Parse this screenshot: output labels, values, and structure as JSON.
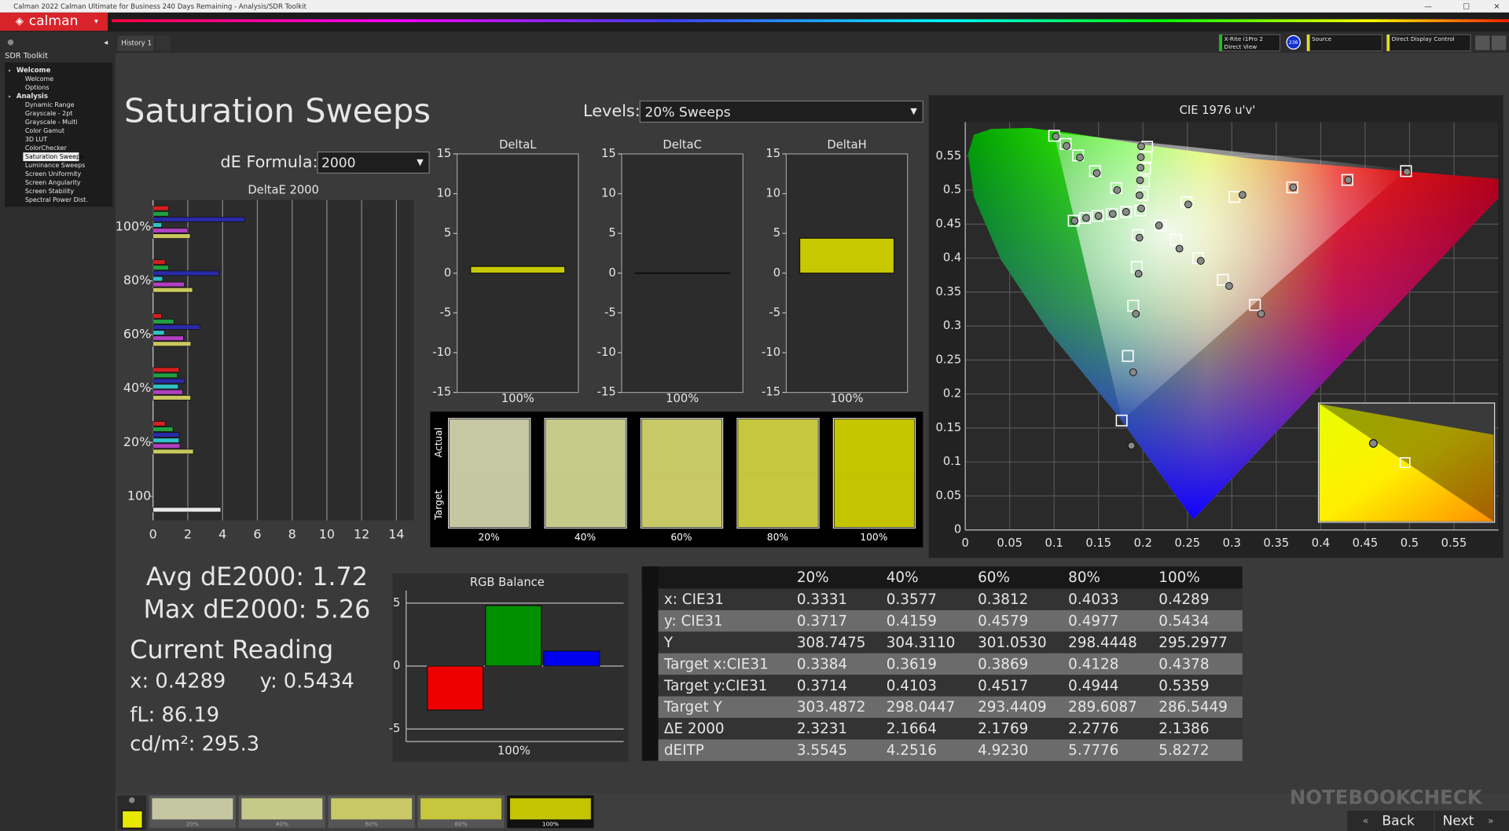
{
  "window": {
    "title": "Calman 2022 Calman Ultimate for Business 240 Days Remaining  - Analysis/SDR Toolkit",
    "logo": "calman",
    "history_tab": "History 1",
    "meter_name": "X-Rite i1Pro 2",
    "meter_mode": "Direct View",
    "meter_badge": "236",
    "source": "Source",
    "display_control": "Direct Display Control"
  },
  "sidebar": {
    "title": "SDR Toolkit",
    "groups": [
      {
        "label": "Welcome",
        "items": [
          "Welcome",
          "Options"
        ]
      },
      {
        "label": "Analysis",
        "items": [
          "Dynamic Range",
          "Grayscale - 2pt",
          "Grayscale - Multi",
          "Color Gamut",
          "3D LUT",
          "ColorChecker",
          "Saturation Sweeps",
          "Luminance Sweeps",
          "Screen Uniformity",
          "Screen Angularity",
          "Screen Stability",
          "Spectral Power Dist."
        ]
      }
    ],
    "selected_group": 1,
    "selected_item": 6
  },
  "page": {
    "heading": "Saturation Sweeps",
    "levels_label": "Levels:",
    "levels_value": "20% Sweeps",
    "formula_label": "dE Formula:",
    "formula_value": "2000"
  },
  "deltae_chart": {
    "type": "bar",
    "orientation": "horizontal",
    "title": "DeltaE 2000",
    "categories": [
      "100%",
      "80%",
      "60%",
      "40%",
      "20%",
      "100"
    ],
    "series": [
      {
        "color": "#d42020",
        "values": [
          0.9,
          0.7,
          0.5,
          1.5,
          0.7,
          null
        ]
      },
      {
        "color": "#20a040",
        "values": [
          0.9,
          0.9,
          1.2,
          1.4,
          1.15,
          null
        ]
      },
      {
        "color": "#2a2aa8",
        "values": [
          5.26,
          3.8,
          2.7,
          1.8,
          1.5,
          null
        ]
      },
      {
        "color": "#30c0c8",
        "values": [
          0.5,
          0.55,
          0.65,
          1.45,
          1.5,
          null
        ]
      },
      {
        "color": "#b040c0",
        "values": [
          2.0,
          1.8,
          1.75,
          1.7,
          1.55,
          null
        ]
      },
      {
        "color": "#c8c860",
        "values": [
          2.1386,
          2.2776,
          2.1769,
          2.1664,
          2.3231,
          null
        ]
      },
      {
        "color": "#e8e8e8",
        "values": [
          null,
          null,
          null,
          null,
          null,
          3.9
        ]
      }
    ],
    "xlim": [
      0,
      15
    ],
    "xticks": [
      0,
      2,
      4,
      6,
      8,
      10,
      12,
      14
    ],
    "grid": true
  },
  "delta_charts": [
    {
      "type": "bar",
      "title": "DeltaL",
      "categories": [
        "100%"
      ],
      "values": [
        0.85
      ],
      "color": "#c8c800",
      "ylim": [
        -15,
        15
      ],
      "yticks": [
        -15,
        -10,
        -5,
        0,
        5,
        10,
        15
      ]
    },
    {
      "type": "bar",
      "title": "DeltaC",
      "categories": [
        "100%"
      ],
      "values": [
        0.05
      ],
      "color": "#c8c800",
      "ylim": [
        -15,
        15
      ],
      "yticks": [
        -15,
        -10,
        -5,
        0,
        5,
        10,
        15
      ]
    },
    {
      "type": "bar",
      "title": "DeltaH",
      "categories": [
        "100%"
      ],
      "values": [
        4.4
      ],
      "color": "#c8c800",
      "ylim": [
        -15,
        15
      ],
      "yticks": [
        -15,
        -10,
        -5,
        0,
        5,
        10,
        15
      ]
    }
  ],
  "swatches": {
    "row_labels": [
      "Actual",
      "Target"
    ],
    "categories": [
      "20%",
      "40%",
      "60%",
      "80%",
      "100%"
    ],
    "actual_colors": [
      "#c6c8a4",
      "#c8ca8a",
      "#c8c968",
      "#c6c73e",
      "#c5c500"
    ],
    "target_colors": [
      "#c5c7a2",
      "#c7c988",
      "#c8c966",
      "#c6c73c",
      "#c4c400"
    ]
  },
  "cie_chart": {
    "type": "scatter",
    "title": "CIE 1976 u'v'",
    "xlim": [
      0,
      0.6
    ],
    "ylim": [
      0,
      0.6
    ],
    "xticks": [
      0,
      0.05,
      0.1,
      0.15,
      0.2,
      0.25,
      0.3,
      0.35,
      0.4,
      0.45,
      0.5,
      0.55
    ],
    "yticks": [
      0,
      0.05,
      0.1,
      0.15,
      0.2,
      0.25,
      0.3,
      0.35,
      0.4,
      0.45,
      0.5,
      0.55
    ],
    "grid": true,
    "series": [
      {
        "marker": "square",
        "color": "#ffffff",
        "x": [
          0.197,
          0.249,
          0.303,
          0.368,
          0.43,
          0.496,
          0.17,
          0.146,
          0.127,
          0.113,
          0.1,
          0.194,
          0.193,
          0.189,
          0.183,
          0.176,
          0.181,
          0.165,
          0.149,
          0.135,
          0.122,
          0.22,
          0.237,
          0.262,
          0.29,
          0.326,
          0.1996,
          0.2011,
          0.2024,
          0.2037,
          0.2047
        ],
        "values": [
          0.47,
          0.482,
          0.49,
          0.504,
          0.515,
          0.528,
          0.503,
          0.528,
          0.551,
          0.568,
          0.58,
          0.434,
          0.387,
          0.33,
          0.256,
          0.161,
          0.468,
          0.465,
          0.462,
          0.459,
          0.455,
          0.448,
          0.427,
          0.4,
          0.368,
          0.331,
          0.493,
          0.5129,
          0.5317,
          0.5488,
          0.5638
        ]
      },
      {
        "marker": "circle",
        "color": "#8a8a8a",
        "x": [
          0.198,
          0.251,
          0.312,
          0.369,
          0.431,
          0.497,
          0.171,
          0.148,
          0.129,
          0.114,
          0.102,
          0.196,
          0.195,
          0.192,
          0.189,
          0.187,
          0.181,
          0.166,
          0.15,
          0.136,
          0.123,
          0.218,
          0.241,
          0.265,
          0.297,
          0.333,
          0.1961,
          0.1967,
          0.1972,
          0.1976,
          0.198
        ],
        "values": [
          0.473,
          0.479,
          0.493,
          0.504,
          0.515,
          0.527,
          0.5,
          0.525,
          0.548,
          0.565,
          0.579,
          0.43,
          0.377,
          0.318,
          0.232,
          0.124,
          0.468,
          0.465,
          0.462,
          0.459,
          0.455,
          0.448,
          0.414,
          0.396,
          0.359,
          0.318,
          0.4924,
          0.5145,
          0.533,
          0.5485,
          0.5645
        ]
      }
    ]
  },
  "rgb_balance": {
    "type": "bar",
    "title": "RGB Balance",
    "categories": [
      "100%"
    ],
    "series": [
      {
        "color": "#ee0000",
        "values": [
          -3.5
        ]
      },
      {
        "color": "#009000",
        "values": [
          4.8
        ]
      },
      {
        "color": "#0000ee",
        "values": [
          1.2
        ]
      }
    ],
    "ylim": [
      -6,
      6
    ],
    "yticks": [
      -5,
      0,
      5
    ],
    "grid": true
  },
  "summary": {
    "avg": "Avg dE2000: 1.72",
    "max": "Max dE2000: 5.26",
    "reading_title": "Current Reading",
    "x": "x: 0.4289",
    "y": "y: 0.5434",
    "fl": "fL: 86.19",
    "cdm2": "cd/m²: 295.3"
  },
  "table": {
    "header": [
      "20%",
      "40%",
      "60%",
      "80%",
      "100%"
    ],
    "rows": [
      [
        "x: CIE31",
        "0.3331",
        "0.3577",
        "0.3812",
        "0.4033",
        "0.4289"
      ],
      [
        "y: CIE31",
        "0.3717",
        "0.4159",
        "0.4579",
        "0.4977",
        "0.5434"
      ],
      [
        "Y",
        "308.7475",
        "304.3110",
        "301.0530",
        "298.4448",
        "295.2977"
      ],
      [
        "Target x:CIE31",
        "0.3384",
        "0.3619",
        "0.3869",
        "0.4128",
        "0.4378"
      ],
      [
        "Target y:CIE31",
        "0.3714",
        "0.4103",
        "0.4517",
        "0.4944",
        "0.5359"
      ],
      [
        "Target Y",
        "303.4872",
        "298.0447",
        "293.4409",
        "289.6087",
        "286.5449"
      ],
      [
        "ΔE 2000",
        "2.3231",
        "2.1664",
        "2.1769",
        "2.2776",
        "2.1386"
      ],
      [
        "dEITP",
        "3.5545",
        "4.2516",
        "4.9230",
        "5.7776",
        "5.8272"
      ]
    ]
  },
  "bottom_bar": {
    "thumbnails": [
      "20%",
      "40%",
      "60%",
      "80%",
      "100%"
    ],
    "thumbnail_colors": [
      "#c5c7a2",
      "#c7c988",
      "#c8c966",
      "#c6c73c",
      "#c4c400"
    ],
    "selected": 4,
    "current_color": "#e8e800",
    "back": "Back",
    "next": "Next",
    "watermark": "NOTEBOOKCHECK"
  }
}
